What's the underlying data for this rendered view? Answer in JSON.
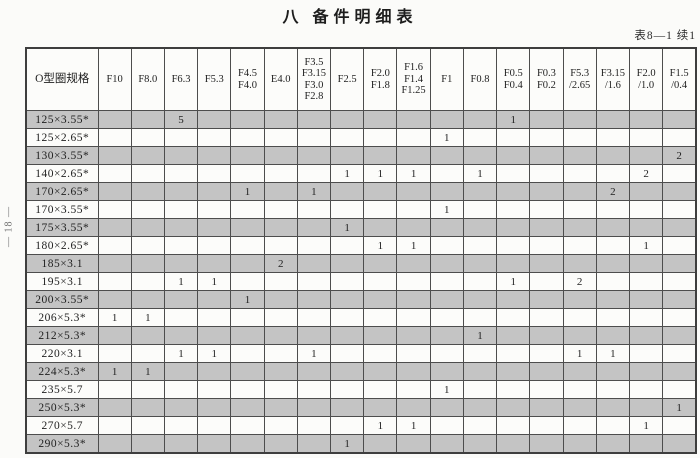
{
  "page": {
    "title": "八 备件明细表",
    "table_ref": "表8—1 续1",
    "page_number": "— 18 —"
  },
  "table": {
    "columns": [
      {
        "lines": [
          "O型圈规格"
        ]
      },
      {
        "lines": [
          "F10"
        ]
      },
      {
        "lines": [
          "F8.0"
        ]
      },
      {
        "lines": [
          "F6.3"
        ]
      },
      {
        "lines": [
          "F5.3"
        ]
      },
      {
        "lines": [
          "F4.5",
          "F4.0"
        ]
      },
      {
        "lines": [
          "E4.0"
        ]
      },
      {
        "lines": [
          "F3.5",
          "F3.15",
          "F3.0",
          "F2.8"
        ]
      },
      {
        "lines": [
          "F2.5"
        ]
      },
      {
        "lines": [
          "F2.0",
          "F1.8"
        ]
      },
      {
        "lines": [
          "F1.6",
          "F1.4",
          "F1.25"
        ]
      },
      {
        "lines": [
          "F1"
        ]
      },
      {
        "lines": [
          "F0.8"
        ]
      },
      {
        "lines": [
          "F0.5",
          "F0.4"
        ]
      },
      {
        "lines": [
          "F0.3",
          "F0.2"
        ]
      },
      {
        "lines": [
          "F5.3",
          "/2.65"
        ]
      },
      {
        "lines": [
          "F3.15",
          "/1.6"
        ]
      },
      {
        "lines": [
          "F2.0",
          "/1.0"
        ]
      },
      {
        "lines": [
          "F1.5",
          "/0.4"
        ]
      }
    ],
    "rows": [
      {
        "label": "125×3.55*",
        "values": [
          "",
          "",
          "5",
          "",
          "",
          "",
          "",
          "",
          "",
          "",
          "",
          "",
          "1",
          "",
          "",
          "",
          "",
          ""
        ]
      },
      {
        "label": "125×2.65*",
        "values": [
          "",
          "",
          "",
          "",
          "",
          "",
          "",
          "",
          "",
          "",
          "1",
          "",
          "",
          "",
          "",
          "",
          "",
          ""
        ]
      },
      {
        "label": "130×3.55*",
        "values": [
          "",
          "",
          "",
          "",
          "",
          "",
          "",
          "",
          "",
          "",
          "",
          "",
          "",
          "",
          "",
          "",
          "",
          "2"
        ]
      },
      {
        "label": "140×2.65*",
        "values": [
          "",
          "",
          "",
          "",
          "",
          "",
          "",
          "1",
          "1",
          "1",
          "",
          "1",
          "",
          "",
          "",
          "",
          "2",
          ""
        ]
      },
      {
        "label": "170×2.65*",
        "values": [
          "",
          "",
          "",
          "",
          "1",
          "",
          "1",
          "",
          "",
          "",
          "",
          "",
          "",
          "",
          "",
          "2",
          "",
          ""
        ]
      },
      {
        "label": "170×3.55*",
        "values": [
          "",
          "",
          "",
          "",
          "",
          "",
          "",
          "",
          "",
          "",
          "1",
          "",
          "",
          "",
          "",
          "",
          "",
          ""
        ]
      },
      {
        "label": "175×3.55*",
        "values": [
          "",
          "",
          "",
          "",
          "",
          "",
          "",
          "1",
          "",
          "",
          "",
          "",
          "",
          "",
          "",
          "",
          "",
          ""
        ]
      },
      {
        "label": "180×2.65*",
        "values": [
          "",
          "",
          "",
          "",
          "",
          "",
          "",
          "",
          "1",
          "1",
          "",
          "",
          "",
          "",
          "",
          "",
          "1",
          ""
        ]
      },
      {
        "label": "185×3.1",
        "values": [
          "",
          "",
          "",
          "",
          "",
          "2",
          "",
          "",
          "",
          "",
          "",
          "",
          "",
          "",
          "",
          "",
          "",
          ""
        ]
      },
      {
        "label": "195×3.1",
        "values": [
          "",
          "",
          "1",
          "1",
          "",
          "",
          "",
          "",
          "",
          "",
          "",
          "",
          "1",
          "",
          "2",
          "",
          "",
          ""
        ]
      },
      {
        "label": "200×3.55*",
        "values": [
          "",
          "",
          "",
          "",
          "1",
          "",
          "",
          "",
          "",
          "",
          "",
          "",
          "",
          "",
          "",
          "",
          "",
          ""
        ]
      },
      {
        "label": "206×5.3*",
        "values": [
          "1",
          "1",
          "",
          "",
          "",
          "",
          "",
          "",
          "",
          "",
          "",
          "",
          "",
          "",
          "",
          "",
          "",
          ""
        ]
      },
      {
        "label": "212×5.3*",
        "values": [
          "",
          "",
          "",
          "",
          "",
          "",
          "",
          "",
          "",
          "",
          "",
          "1",
          "",
          "",
          "",
          "",
          "",
          ""
        ]
      },
      {
        "label": "220×3.1",
        "values": [
          "",
          "",
          "1",
          "1",
          "",
          "",
          "1",
          "",
          "",
          "",
          "",
          "",
          "",
          "",
          "1",
          "1",
          "",
          ""
        ]
      },
      {
        "label": "224×5.3*",
        "values": [
          "1",
          "1",
          "",
          "",
          "",
          "",
          "",
          "",
          "",
          "",
          "",
          "",
          "",
          "",
          "",
          "",
          "",
          ""
        ]
      },
      {
        "label": "235×5.7",
        "values": [
          "",
          "",
          "",
          "",
          "",
          "",
          "",
          "",
          "",
          "",
          "1",
          "",
          "",
          "",
          "",
          "",
          "",
          ""
        ]
      },
      {
        "label": "250×5.3*",
        "values": [
          "",
          "",
          "",
          "",
          "",
          "",
          "",
          "",
          "",
          "",
          "",
          "",
          "",
          "",
          "",
          "",
          "",
          "1"
        ]
      },
      {
        "label": "270×5.7",
        "values": [
          "",
          "",
          "",
          "",
          "",
          "",
          "",
          "",
          "1",
          "1",
          "",
          "",
          "",
          "",
          "",
          "",
          "1",
          ""
        ]
      },
      {
        "label": "290×5.3*",
        "values": [
          "",
          "",
          "",
          "",
          "",
          "",
          "",
          "1",
          "",
          "",
          "",
          "",
          "",
          "",
          "",
          "",
          "",
          ""
        ]
      }
    ]
  }
}
